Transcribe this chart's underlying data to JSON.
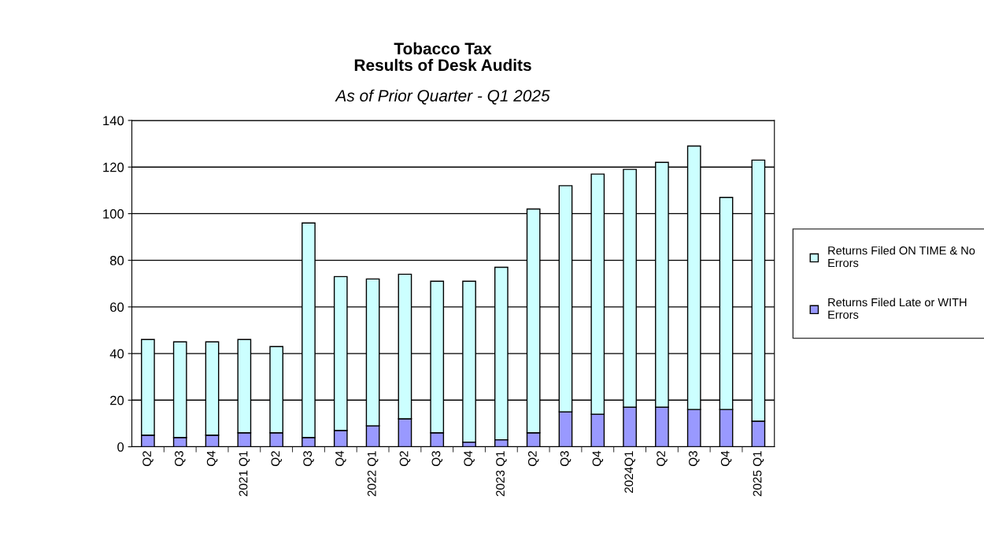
{
  "chart_data": {
    "type": "bar",
    "title": "Tobacco Tax\nResults of Desk Audits",
    "subtitle": "As of Prior Quarter - Q1 2025",
    "categories": [
      "Q2",
      "Q3",
      "Q4",
      "2021 Q1",
      "Q2",
      "Q3",
      "Q4",
      "2022 Q1",
      "Q2",
      "Q3",
      "Q4",
      "2023 Q1",
      "Q2",
      "Q3",
      "Q4",
      "2024Q1",
      "Q2",
      "Q3",
      "Q4",
      "2025 Q1"
    ],
    "stacked": true,
    "series": [
      {
        "name": "Returns Filed Late or WITH Errors",
        "color": "#9999ff",
        "values": [
          5,
          4,
          5,
          6,
          6,
          4,
          7,
          9,
          12,
          6,
          2,
          3,
          6,
          15,
          14,
          17,
          17,
          16,
          16,
          11
        ]
      },
      {
        "name": "Returns Filed ON TIME & No Errors",
        "color": "#ccffff",
        "values": [
          41,
          41,
          40,
          40,
          37,
          92,
          66,
          63,
          62,
          65,
          69,
          74,
          96,
          97,
          103,
          102,
          105,
          113,
          91,
          112
        ]
      }
    ],
    "ylim": [
      0,
      140
    ],
    "yticks": [
      0,
      20,
      40,
      60,
      80,
      100,
      120,
      140
    ],
    "grid": "y",
    "legend": "right"
  }
}
